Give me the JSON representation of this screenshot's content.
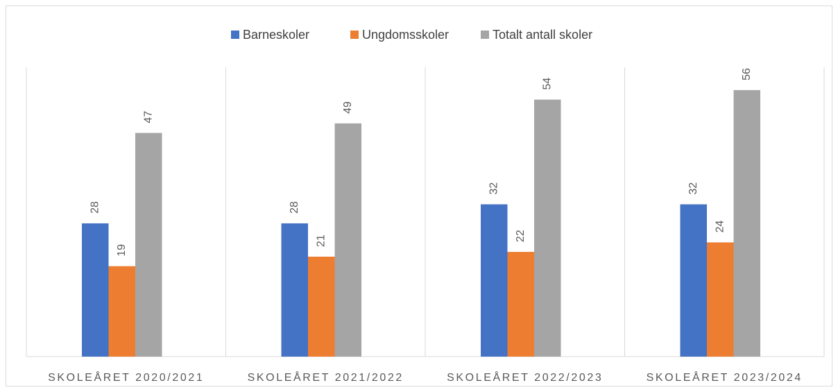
{
  "chart_data": {
    "type": "bar",
    "categories": [
      "SKOLEÅRET 2020/2021",
      "SKOLEÅRET 2021/2022",
      "SKOLEÅRET 2022/2023",
      "SKOLEÅRET 2023/2024"
    ],
    "series": [
      {
        "name": "Barneskoler",
        "color": "#4472c4",
        "values": [
          28,
          28,
          32,
          32
        ]
      },
      {
        "name": "Ungdomsskoler",
        "color": "#ed7d31",
        "values": [
          19,
          21,
          22,
          24
        ]
      },
      {
        "name": "Totalt antall skoler",
        "color": "#a5a5a5",
        "values": [
          47,
          49,
          54,
          56
        ]
      }
    ],
    "legend": "top"
  }
}
